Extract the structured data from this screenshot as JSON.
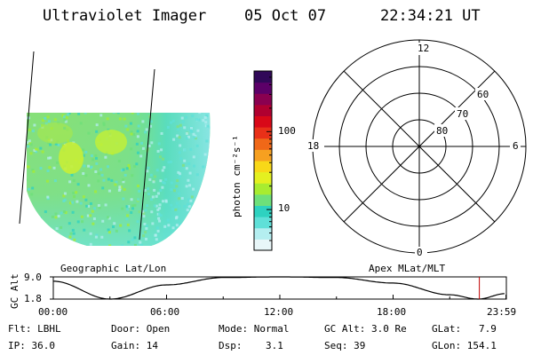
{
  "header": {
    "instrument": "Ultraviolet Imager",
    "date": "05 Oct 07",
    "time": "22:34:21 UT"
  },
  "colorbar": {
    "unit_label": "photon cm⁻²s⁻¹",
    "ticks": [
      {
        "value": 100,
        "label": "100"
      },
      {
        "value": 10,
        "label": "10"
      }
    ],
    "log_scale": true,
    "range": [
      3,
      600
    ],
    "colors": [
      "#e8f6f8",
      "#b4eef0",
      "#5fe0d8",
      "#2ed2c0",
      "#6ee07a",
      "#a8ec30",
      "#e4f020",
      "#f8d818",
      "#f6a020",
      "#f06818",
      "#e83018",
      "#d80818",
      "#b00030",
      "#8a0050",
      "#5c0068",
      "#300858"
    ]
  },
  "image_panel": {
    "label": "Geographic Lat/Lon"
  },
  "polar_plot": {
    "label": "Apex MLat/MLT",
    "mlt_labels": [
      "12",
      "18",
      "6",
      "0"
    ],
    "lat_labels": [
      "60",
      "70",
      "80"
    ]
  },
  "altitude_strip": {
    "ylabel": "GC Alt",
    "ytick_labels": [
      "9.0",
      "1.8"
    ],
    "ylim": [
      1.8,
      9.0
    ],
    "xtick_labels": [
      "00:00",
      "06:00",
      "12:00",
      "18:00",
      "23:59"
    ],
    "current_time_hours": 22.57,
    "marker_color": "#c00000"
  },
  "info": {
    "filter": "Flt: LBHL",
    "door": "Door: Open",
    "mode": "Mode: Normal",
    "gc_alt": "GC Alt: 3.0 Re",
    "glat": "GLat:   7.9",
    "ip": "IP: 36.0",
    "gain": "Gain: 14",
    "dsp": "Dsp:    3.1",
    "seq": "Seq: 39",
    "glon": "GLon: 154.1"
  },
  "chart_data": {
    "type": "line",
    "title": "",
    "xlabel": "",
    "ylabel": "GC Alt",
    "x": [
      "00:00",
      "03:00",
      "06:00",
      "09:00",
      "12:00",
      "15:00",
      "18:00",
      "21:00",
      "22:30",
      "23:59"
    ],
    "series": [
      {
        "values": [
          7.6,
          1.8,
          6.4,
          8.8,
          9.0,
          8.8,
          7.0,
          3.2,
          1.8,
          3.6
        ]
      }
    ],
    "ylim": [
      1.8,
      9.0
    ],
    "grid": false
  }
}
